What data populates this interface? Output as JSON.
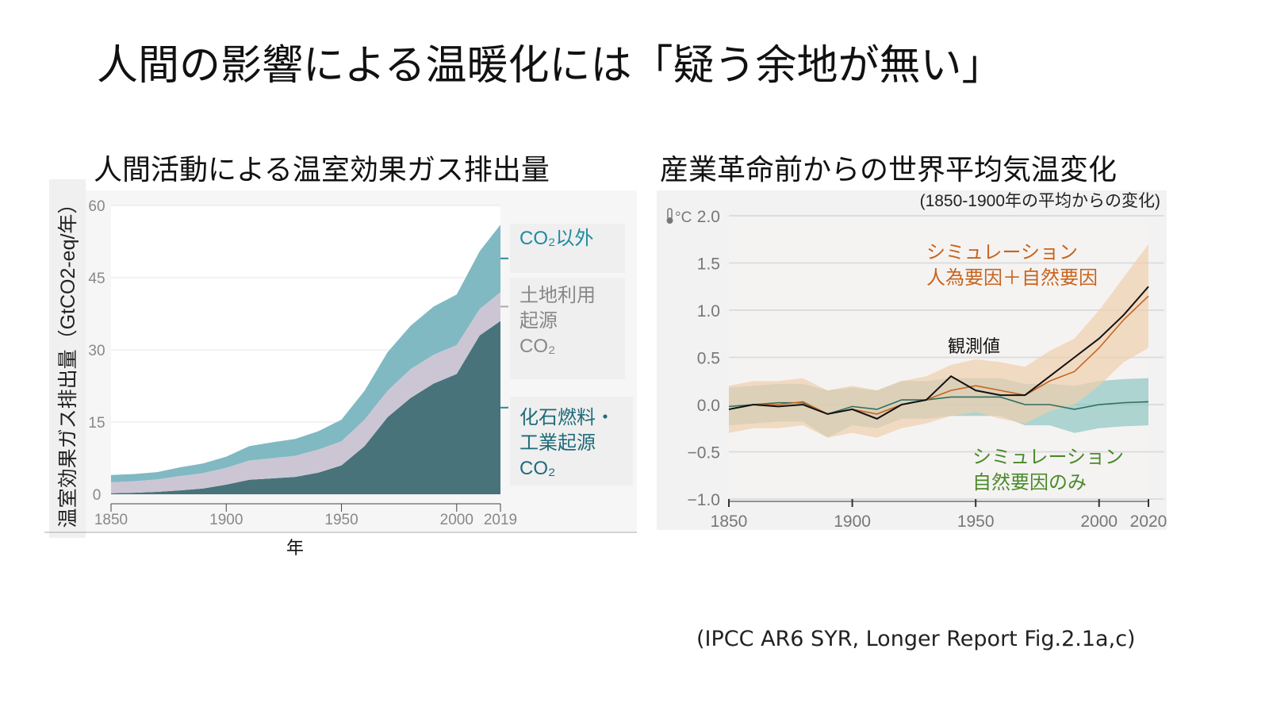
{
  "title": "人間の影響による温暖化には「疑う余地が無い」",
  "source": "(IPCC AR6 SYR, Longer Report Fig.2.1a,c)",
  "chart_data": [
    {
      "type": "area",
      "title": "人間活動による温室効果ガス排出量",
      "ylabel": "温室効果ガス排出量（GtCO2-eq/年）",
      "xlabel": "年",
      "xlim": [
        1850,
        2019
      ],
      "ylim": [
        0,
        60
      ],
      "yticks": [
        "0",
        "15",
        "30",
        "45",
        "60"
      ],
      "xticks": [
        "1850",
        "1900",
        "1950",
        "2000",
        "2019"
      ],
      "x": [
        1850,
        1860,
        1870,
        1880,
        1890,
        1900,
        1910,
        1920,
        1930,
        1940,
        1950,
        1960,
        1970,
        1980,
        1990,
        2000,
        2010,
        2019
      ],
      "series": [
        {
          "name": "化石燃料・工業起源CO2",
          "label_lines": [
            "化石燃料・",
            "工業起源",
            "CO₂"
          ],
          "color": "#48737b",
          "values": [
            0.2,
            0.3,
            0.5,
            0.8,
            1.2,
            2,
            3,
            3.3,
            3.6,
            4.5,
            6,
            10,
            16,
            20,
            23,
            25,
            33,
            36
          ]
        },
        {
          "name": "土地利用起源CO2",
          "label_lines": [
            "土地利用",
            "起源",
            "CO₂"
          ],
          "color": "#ccc6d4",
          "values": [
            2.3,
            2.4,
            2.6,
            3,
            3.2,
            3.5,
            4,
            4.2,
            4.4,
            4.8,
            5,
            5.5,
            5.5,
            6,
            6,
            6,
            5.5,
            6
          ]
        },
        {
          "name": "CO2以外",
          "label_lines": [
            "CO₂以外"
          ],
          "color": "#80b9c2",
          "values": [
            1.5,
            1.5,
            1.5,
            1.8,
            2,
            2.3,
            3,
            3.3,
            3.5,
            3.8,
            4.5,
            6,
            8,
            9,
            10,
            10.5,
            12,
            14
          ]
        }
      ]
    },
    {
      "type": "line",
      "title": "産業革命前からの世界平均気温変化",
      "subtitle": "(1850-1900年の平均からの変化)",
      "yunit": "°C",
      "xlim": [
        1850,
        2020
      ],
      "ylim": [
        -1,
        2
      ],
      "yticks": [
        "2.0",
        "1.5",
        "1.0",
        "0.5",
        "0.0",
        "−0.5",
        "−1.0"
      ],
      "xticks": [
        "1850",
        "1900",
        "1950",
        "2000",
        "2020"
      ],
      "x": [
        1850,
        1860,
        1870,
        1880,
        1890,
        1900,
        1910,
        1920,
        1930,
        1940,
        1950,
        1960,
        1970,
        1980,
        1990,
        2000,
        2010,
        2020
      ],
      "series": [
        {
          "name": "観測値",
          "color": "#111111",
          "values": [
            -0.05,
            0,
            -0.02,
            0,
            -0.1,
            -0.05,
            -0.15,
            0,
            0.05,
            0.3,
            0.15,
            0.1,
            0.1,
            0.3,
            0.5,
            0.7,
            0.95,
            1.25
          ]
        },
        {
          "name": "シミュレーション 人為要因＋自然要因",
          "label_lines": [
            "シミュレーション",
            "人為要因＋自然要因"
          ],
          "color": "#c8641e",
          "band_color": "#f0cfae",
          "values": [
            -0.05,
            0,
            0,
            0.03,
            -0.1,
            -0.05,
            -0.1,
            0,
            0.05,
            0.15,
            0.2,
            0.15,
            0.1,
            0.25,
            0.35,
            0.6,
            0.9,
            1.15
          ],
          "band_halfwidth": [
            0.25,
            0.25,
            0.25,
            0.25,
            0.25,
            0.25,
            0.25,
            0.25,
            0.25,
            0.27,
            0.28,
            0.3,
            0.3,
            0.32,
            0.35,
            0.4,
            0.45,
            0.55
          ]
        },
        {
          "name": "シミュレーション 自然要因のみ",
          "label_lines": [
            "シミュレーション",
            "自然要因のみ"
          ],
          "color": "#2f6f5e",
          "label_color": "#4a8a2a",
          "band_color": "#8fc6c2",
          "values": [
            -0.02,
            0,
            0.02,
            0.02,
            -0.1,
            -0.02,
            -0.05,
            0.05,
            0.05,
            0.08,
            0.08,
            0.08,
            0,
            0,
            -0.05,
            0,
            0.02,
            0.03
          ],
          "band_halfwidth": [
            0.2,
            0.2,
            0.2,
            0.2,
            0.25,
            0.2,
            0.2,
            0.2,
            0.2,
            0.2,
            0.2,
            0.2,
            0.22,
            0.22,
            0.25,
            0.25,
            0.25,
            0.25
          ]
        }
      ]
    }
  ]
}
